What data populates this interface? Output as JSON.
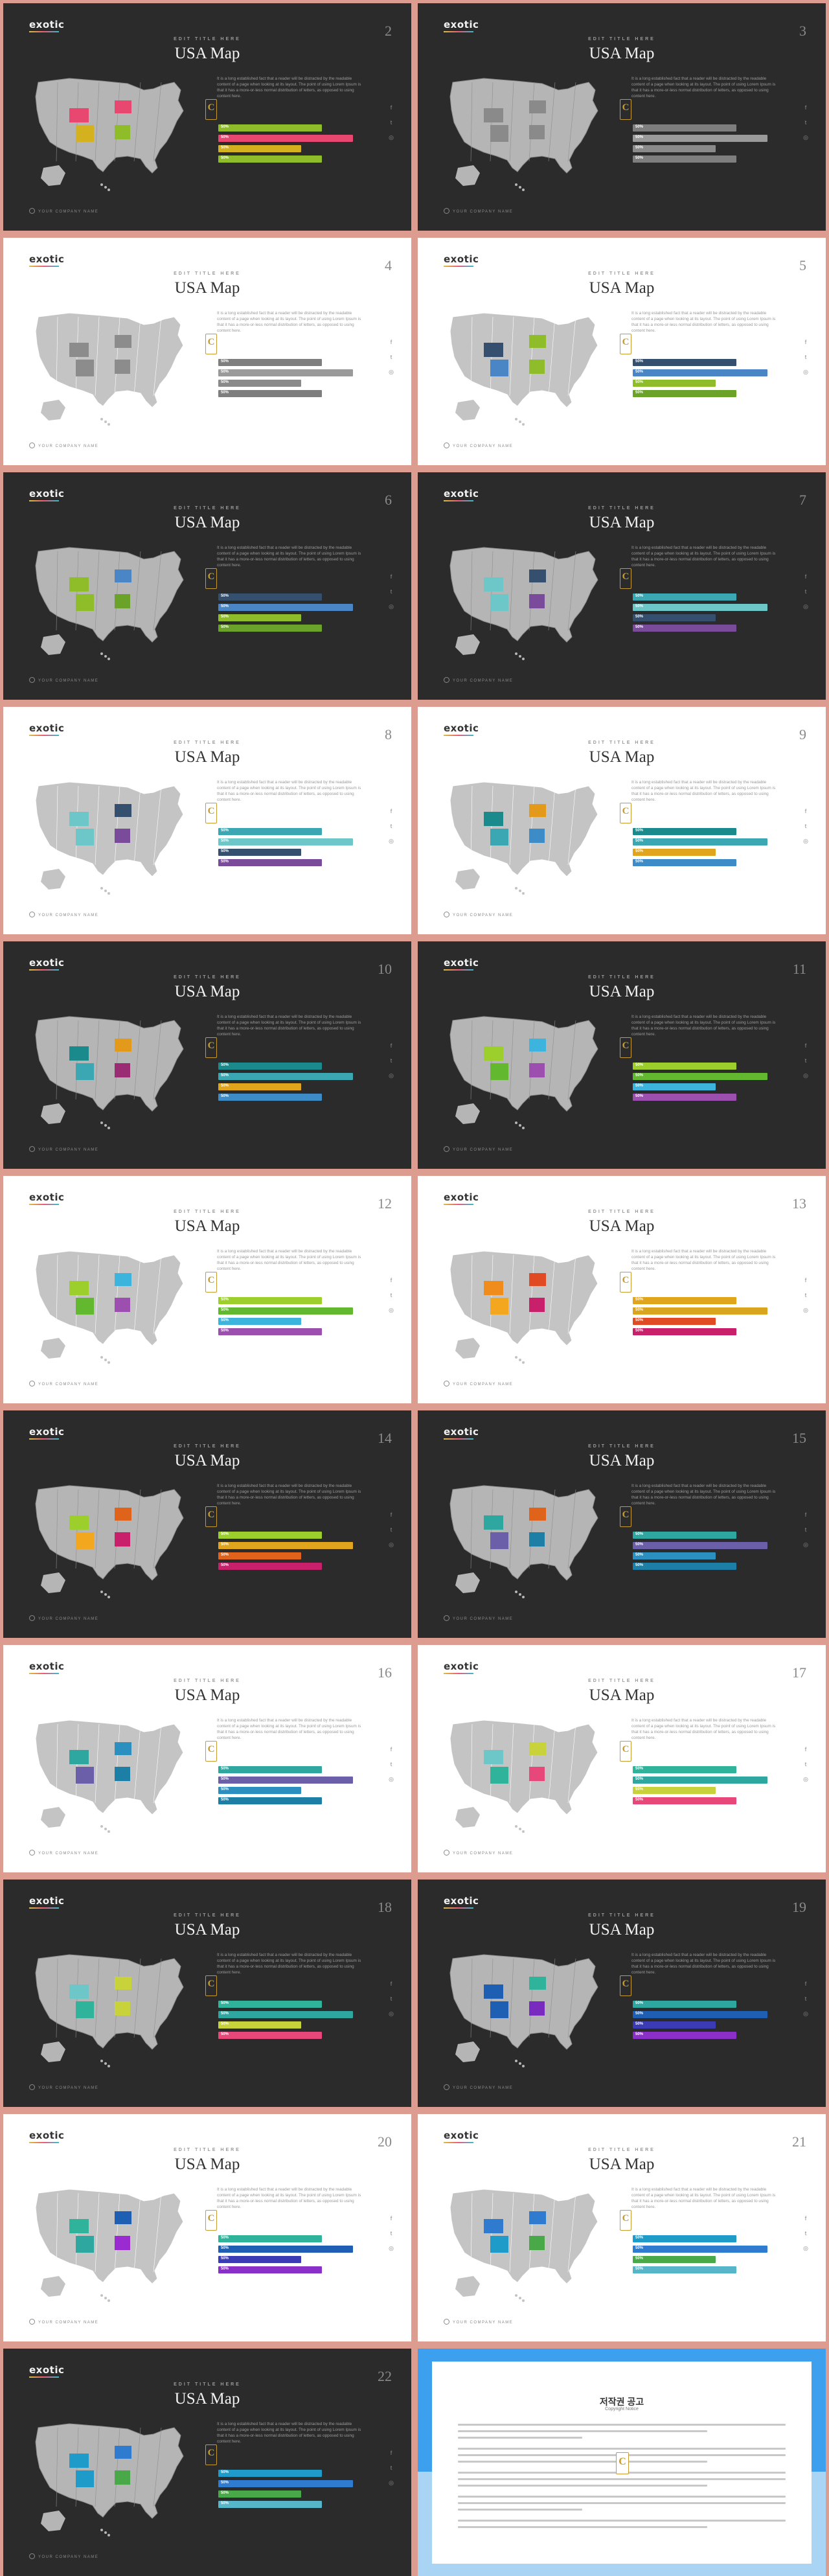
{
  "slide_common": {
    "logo": "exotic",
    "subtitle": "EDIT TITLE HERE",
    "title": "USA Map",
    "body": "It is a long established fact that a reader will be distracted by the readable content of a page when looking at its layout. The point of using Lorem Ipsum is that it has a more-or-less normal distribution of letters, as opposed to using content here.",
    "bar_label": "50%",
    "crest_letter": "C",
    "social_icons": [
      "f",
      "t",
      "◎"
    ],
    "footer": "YOUR COMPANY NAME"
  },
  "slides": [
    {
      "page": "2",
      "theme": "dark",
      "hi": [
        "#e8476f",
        "#e8476f",
        "#d4b11f",
        "#8fbd2a"
      ],
      "bars": [
        "#8fbd2a",
        "#e8476f",
        "#d4b11f",
        "#8fbd2a"
      ]
    },
    {
      "page": "3",
      "theme": "dark",
      "hi": [
        "#8a8a8a",
        "#8a8a8a",
        "#8a8a8a",
        "#8a8a8a"
      ],
      "bars": [
        "#7e7e7e",
        "#9a9a9a",
        "#8a8a8a",
        "#7e7e7e"
      ]
    },
    {
      "page": "4",
      "theme": "light",
      "hi": [
        "#8c8c8c",
        "#8c8c8c",
        "#8c8c8c",
        "#8c8c8c"
      ],
      "bars": [
        "#7e7e7e",
        "#9a9a9a",
        "#8a8a8a",
        "#7e7e7e"
      ]
    },
    {
      "page": "5",
      "theme": "light",
      "hi": [
        "#34506e",
        "#8fbd2a",
        "#4a86c5",
        "#8fbd2a"
      ],
      "bars": [
        "#34506e",
        "#4a86c5",
        "#8fbd2a",
        "#6aa22a"
      ]
    },
    {
      "page": "6",
      "theme": "dark",
      "hi": [
        "#8fbd2a",
        "#4a86c5",
        "#8fbd2a",
        "#6aa22a"
      ],
      "bars": [
        "#34506e",
        "#4a86c5",
        "#8fbd2a",
        "#6aa22a"
      ]
    },
    {
      "page": "7",
      "theme": "dark",
      "hi": [
        "#6dc7c9",
        "#34506e",
        "#6dc7c9",
        "#7a4a9b"
      ],
      "bars": [
        "#3aa7b2",
        "#6dc7c9",
        "#34506e",
        "#7a4a9b"
      ]
    },
    {
      "page": "8",
      "theme": "light",
      "hi": [
        "#6dc7c9",
        "#34506e",
        "#6dc7c9",
        "#7a4a9b"
      ],
      "bars": [
        "#3aa7b2",
        "#6dc7c9",
        "#34506e",
        "#7a4a9b"
      ]
    },
    {
      "page": "9",
      "theme": "light",
      "hi": [
        "#1a8a8c",
        "#e39a1a",
        "#3aa7b2",
        "#3d8cc8"
      ],
      "bars": [
        "#1a8a8c",
        "#3aa7b2",
        "#e0a51c",
        "#3d8cc8"
      ]
    },
    {
      "page": "10",
      "theme": "dark",
      "hi": [
        "#1a8a8c",
        "#e39a1a",
        "#3aa7b2",
        "#9a2c74"
      ],
      "bars": [
        "#1a8a8c",
        "#3aa7b2",
        "#e0a51c",
        "#3d8cc8"
      ]
    },
    {
      "page": "11",
      "theme": "dark",
      "hi": [
        "#9ccf2b",
        "#3db4dd",
        "#62b82e",
        "#9d4fb0"
      ],
      "bars": [
        "#9ccf2b",
        "#62b82e",
        "#3db4dd",
        "#9d4fb0"
      ]
    },
    {
      "page": "12",
      "theme": "light",
      "hi": [
        "#9ccf2b",
        "#3db4dd",
        "#62b82e",
        "#9d4fb0"
      ],
      "bars": [
        "#9ccf2b",
        "#62b82e",
        "#3db4dd",
        "#9d4fb0"
      ]
    },
    {
      "page": "13",
      "theme": "light",
      "hi": [
        "#f08c1c",
        "#e04b24",
        "#f3a71e",
        "#c8206a"
      ],
      "bars": [
        "#e0a51c",
        "#d9a41e",
        "#e04b24",
        "#c8206a"
      ]
    },
    {
      "page": "14",
      "theme": "dark",
      "hi": [
        "#9ccf2b",
        "#e0631c",
        "#f3a71e",
        "#c8206a"
      ],
      "bars": [
        "#9ccf2b",
        "#e0a51c",
        "#e0631c",
        "#c8206a"
      ]
    },
    {
      "page": "15",
      "theme": "dark",
      "hi": [
        "#2fa7a1",
        "#e0631c",
        "#6a5fa8",
        "#1d7fa6"
      ],
      "bars": [
        "#2fa7a1",
        "#6a5fa8",
        "#2b8fc0",
        "#1d7fa6"
      ]
    },
    {
      "page": "16",
      "theme": "light",
      "hi": [
        "#2fa7a1",
        "#2b8fc0",
        "#6a5fa8",
        "#1d7fa6"
      ],
      "bars": [
        "#2fa7a1",
        "#6a5fa8",
        "#2b8fc0",
        "#1d7fa6"
      ]
    },
    {
      "page": "17",
      "theme": "light",
      "hi": [
        "#6dc7c9",
        "#c8d23a",
        "#2fb39a",
        "#e8477a"
      ],
      "bars": [
        "#2fb39a",
        "#2fa7a1",
        "#c8d23a",
        "#e8477a"
      ]
    },
    {
      "page": "18",
      "theme": "dark",
      "hi": [
        "#6dc7c9",
        "#c8d23a",
        "#2fb39a",
        "#c8d23a"
      ],
      "bars": [
        "#2fb39a",
        "#2fa7a1",
        "#c8d23a",
        "#e8477a"
      ]
    },
    {
      "page": "19",
      "theme": "dark",
      "hi": [
        "#1e5fb4",
        "#2fb39a",
        "#1e5fb4",
        "#7a2bbf"
      ],
      "bars": [
        "#2fa7a1",
        "#1e5fb4",
        "#3b3bb5",
        "#8b2fc9"
      ]
    },
    {
      "page": "20",
      "theme": "light",
      "hi": [
        "#2fb39a",
        "#1e5fb4",
        "#2fa7a1",
        "#9a2bd0"
      ],
      "bars": [
        "#2fb39a",
        "#1e5fb4",
        "#3b3bb5",
        "#8b2fc9"
      ]
    },
    {
      "page": "21",
      "theme": "light",
      "hi": [
        "#2f7bd0",
        "#2f7bd0",
        "#1e9bc8",
        "#49a848"
      ],
      "bars": [
        "#1e9bc8",
        "#2f7bd0",
        "#49a848",
        "#56b5c8"
      ]
    },
    {
      "page": "22",
      "theme": "dark",
      "hi": [
        "#1e9bc8",
        "#2f7bd0",
        "#1e9bc8",
        "#49a848"
      ],
      "bars": [
        "#1e9bc8",
        "#2f7bd0",
        "#49a848",
        "#56b5c8"
      ]
    }
  ],
  "copyright": {
    "title": "저작권 공고",
    "subtitle": "Copyright Notice",
    "crest_letter": "C"
  }
}
